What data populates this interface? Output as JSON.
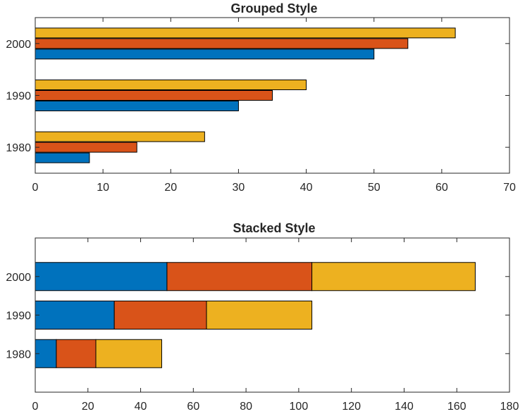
{
  "chart_data": [
    {
      "type": "bar",
      "orientation": "horizontal",
      "style": "grouped",
      "title": "Grouped Style",
      "categories": [
        "1980",
        "1990",
        "2000"
      ],
      "series": [
        {
          "values": [
            8,
            30,
            50
          ],
          "color": "#0072BD"
        },
        {
          "values": [
            15,
            35,
            55
          ],
          "color": "#D95319"
        },
        {
          "values": [
            25,
            40,
            62
          ],
          "color": "#EDB120"
        }
      ],
      "xlim": [
        0,
        70
      ],
      "xticks": [
        "0",
        "10",
        "20",
        "30",
        "40",
        "50",
        "60",
        "70"
      ],
      "grid": false,
      "legend": "none"
    },
    {
      "type": "bar",
      "orientation": "horizontal",
      "style": "stacked",
      "title": "Stacked Style",
      "categories": [
        "1980",
        "1990",
        "2000"
      ],
      "series": [
        {
          "values": [
            8,
            30,
            50
          ],
          "color": "#0072BD"
        },
        {
          "values": [
            15,
            35,
            55
          ],
          "color": "#D95319"
        },
        {
          "values": [
            25,
            40,
            62
          ],
          "color": "#EDB120"
        }
      ],
      "xlim": [
        0,
        180
      ],
      "xticks": [
        "0",
        "20",
        "40",
        "60",
        "80",
        "100",
        "120",
        "140",
        "160",
        "180"
      ],
      "grid": false,
      "legend": "none"
    }
  ]
}
